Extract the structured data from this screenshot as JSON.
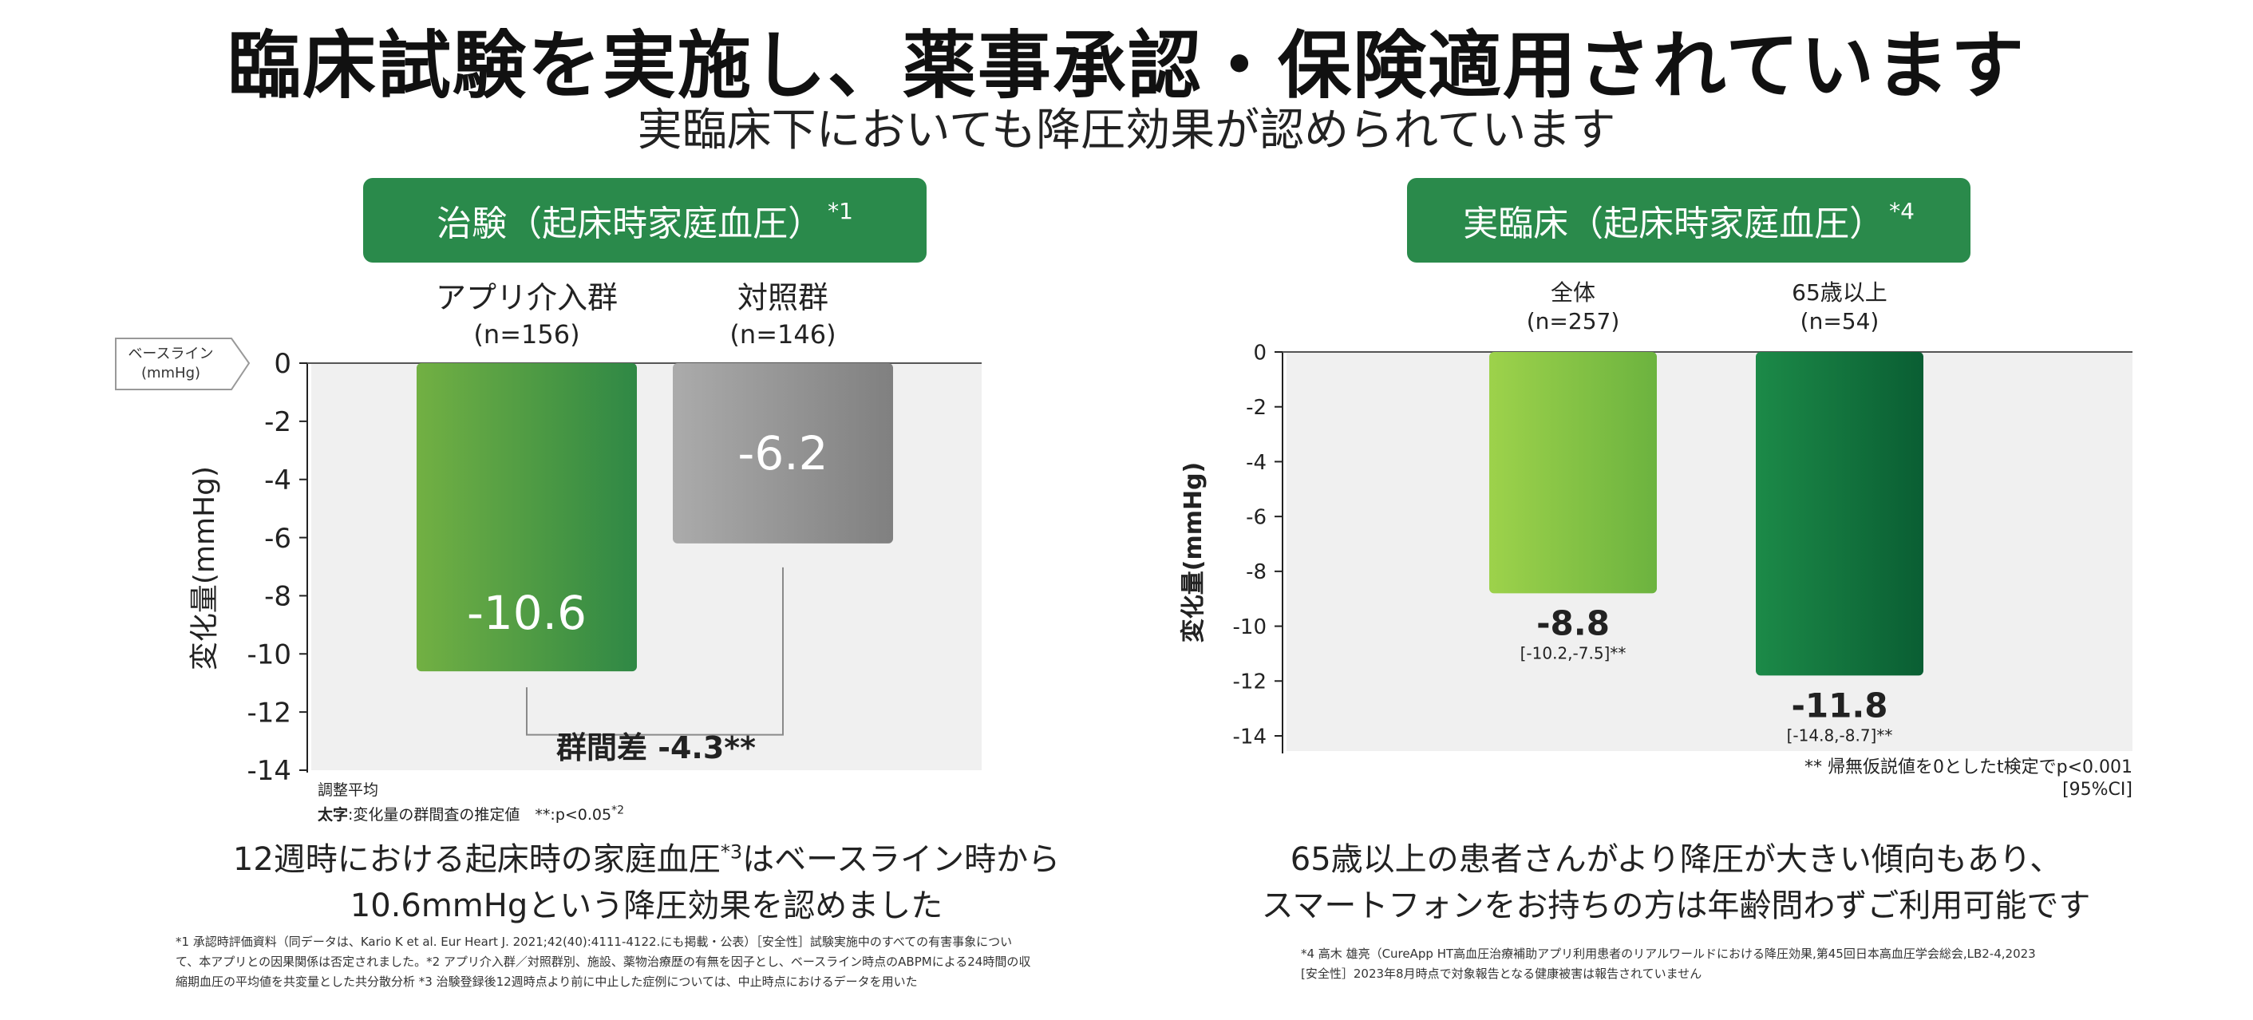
{
  "header": {
    "title": "臨床試験を実施し、薬事承認・保険適用されています",
    "subtitle": "実臨床下においても降圧効果が認められています"
  },
  "left": {
    "pill_label": "治験（起床時家庭血圧）",
    "pill_sup": "*1",
    "baseline_tag_line1": "ベースライン",
    "baseline_tag_line2": "(mmHg)",
    "diff_label": "群間差 -4.3**",
    "note_line1": "調整平均",
    "note_bold": "太字",
    "note_line2_rest": ":変化量の群間査の推定値　**:p<0.05",
    "note_line2_sup": "*2",
    "caption_line1_a": "12週時における起床時の家庭血圧",
    "caption_line1_sup": "*3",
    "caption_line1_b": "はベースライン時から",
    "caption_line2": "10.6mmHgという降圧効果を認めました",
    "footnote_line1": "*1 承認時評価資料（同データは、Kario K et al. Eur Heart J. 2021;42(40):4111-4122.にも掲載・公表）［安全性］試験実施中のすべての有害事象につい",
    "footnote_line2": "て、本アプリとの因果関係は否定されました。*2 アプリ介入群／対照群別、施設、薬物治療歴の有無を因子とし、ベースライン時点のABPMによる24時間の収",
    "footnote_line3": "縮期血圧の平均値を共変量とした共分散分析 *3 治験登録後12週時点より前に中止した症例については、中止時点におけるデータを用いた"
  },
  "right": {
    "pill_label": "実臨床（起床時家庭血圧）",
    "pill_sup": "*4",
    "test_note": "** 帰無仮説値を0としたt検定でp<0.001",
    "ci_note": "[95%CI]",
    "caption_line1": "65歳以上の患者さんがより降圧が大きい傾向もあり、",
    "caption_line2": "スマートフォンをお持ちの方は年齢問わずご利用可能です",
    "footnote_line1": "*4 高木 雄亮（CureApp HT高血圧治療補助アプリ利用患者のリアルワールドにおける降圧効果,第45回日本高血圧学会総会,LB2-4,2023",
    "footnote_line2": "[安全性］2023年8月時点で対象報告となる健康被害は報告されていません"
  },
  "chart_data": [
    {
      "type": "bar",
      "categories": [
        "アプリ介入群",
        "対照群"
      ],
      "category_sublabels": [
        "(n=156)",
        "(n=146)"
      ],
      "values": [
        -10.6,
        -6.2
      ],
      "value_labels": [
        "-10.6",
        "-6.2"
      ],
      "ylabel": "変化量(mmHg)",
      "ylim": [
        -14,
        0
      ],
      "yticks": [
        0,
        -2,
        -4,
        -6,
        -8,
        -10,
        -12,
        -14
      ],
      "colors": [
        "#3f9a45",
        "#8e8e8e"
      ],
      "grid": false
    },
    {
      "type": "bar",
      "categories": [
        "全体",
        "65歳以上"
      ],
      "category_sublabels": [
        "(n=257)",
        "(n=54)"
      ],
      "values": [
        -8.8,
        -11.8
      ],
      "value_labels": [
        "-8.8",
        "-11.8"
      ],
      "ci_labels": [
        "[-10.2,-7.5]**",
        "[-14.8,-8.7]**"
      ],
      "ylabel": "変化量(mmHg)",
      "ylim": [
        -14,
        0
      ],
      "yticks": [
        0,
        -2,
        -4,
        -6,
        -8,
        -10,
        -12,
        -14
      ],
      "colors": [
        "#86c846",
        "#0f6e3a"
      ],
      "grid": false
    }
  ]
}
